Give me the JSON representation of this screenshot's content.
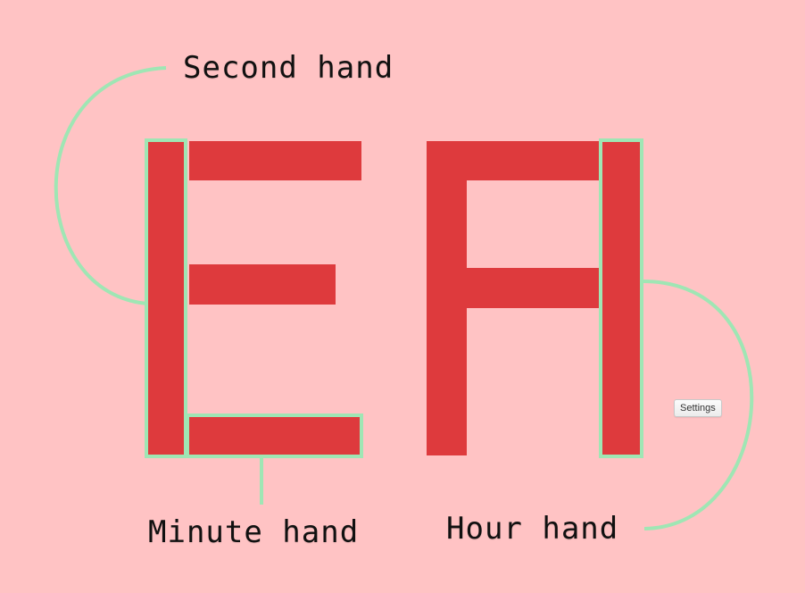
{
  "colors": {
    "background": "#ffc3c4",
    "bar": "#de3a3d",
    "highlight": "#9fe6b4",
    "text": "#111111"
  },
  "labels": {
    "second_hand": "Second hand",
    "minute_hand": "Minute hand",
    "hour_hand": "Hour hand"
  },
  "settings": {
    "label": "Settings"
  }
}
